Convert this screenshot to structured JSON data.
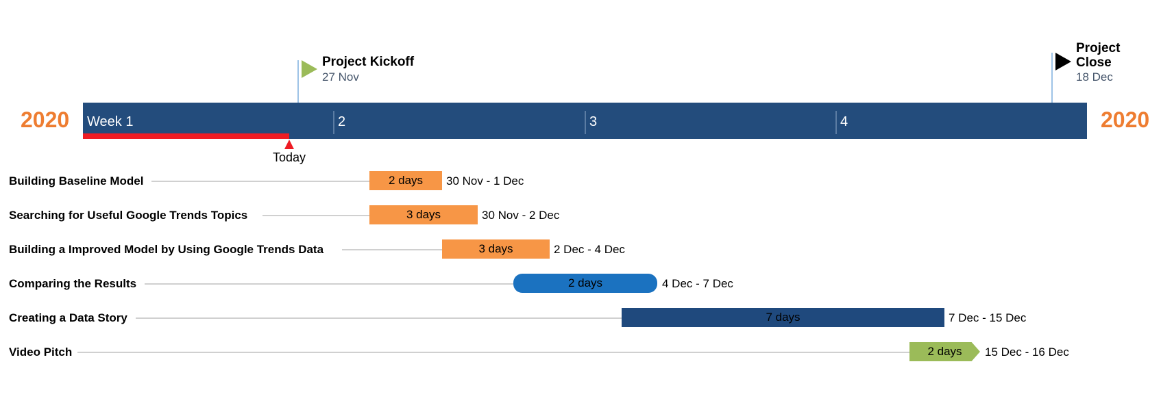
{
  "chart_data": {
    "type": "gantt",
    "year_left": "2020",
    "year_right": "2020",
    "weeks": [
      "Week 1",
      "2",
      "3",
      "4"
    ],
    "today_label": "Today",
    "milestones": [
      {
        "title": "Project Kickoff",
        "date": "27 Nov",
        "color": "#9bbb59",
        "flag_side": "right"
      },
      {
        "title": "Project Close",
        "date": "18 Dec",
        "color": "#000000",
        "flag_side": "right"
      }
    ],
    "tasks": [
      {
        "name": "Building Baseline Model",
        "duration": "2 days",
        "dates": "30 Nov - 1 Dec",
        "color": "#f79646",
        "shape": "rect"
      },
      {
        "name": "Searching for Useful Google Trends Topics",
        "duration": "3 days",
        "dates": "30 Nov - 2 Dec",
        "color": "#f79646",
        "shape": "rect"
      },
      {
        "name": "Building a Improved Model by Using Google Trends Data",
        "duration": "3 days",
        "dates": "2 Dec - 4 Dec",
        "color": "#f79646",
        "shape": "rect"
      },
      {
        "name": "Comparing the Results",
        "duration": "2 days",
        "dates": "4 Dec - 7 Dec",
        "color": "#1b72c0",
        "shape": "rounded"
      },
      {
        "name": "Creating a Data Story",
        "duration": "7 days",
        "dates": "7 Dec - 15 Dec",
        "color": "#1f497d",
        "shape": "rect"
      },
      {
        "name": "Video Pitch",
        "duration": "2 days",
        "dates": "15 Dec - 16 Dec",
        "color": "#9bbb59",
        "shape": "arrow"
      }
    ]
  },
  "colors": {
    "timeline": "#234c7c",
    "year": "#ee7d31",
    "progress": "#ee1c24"
  }
}
